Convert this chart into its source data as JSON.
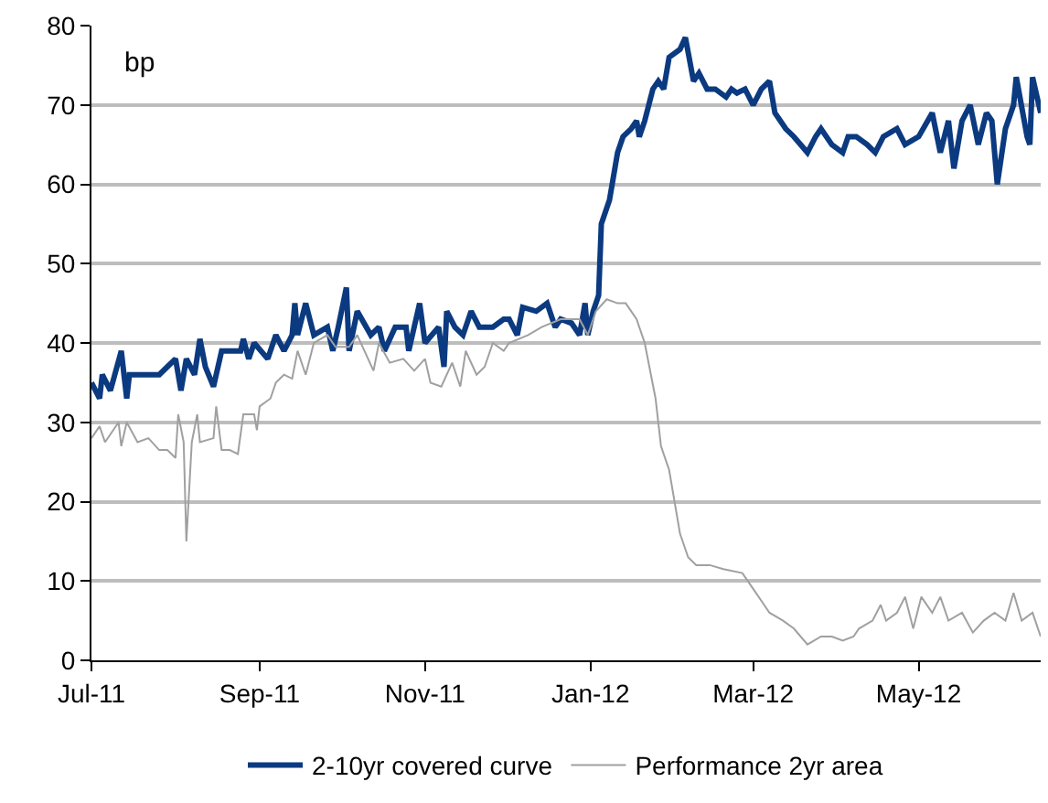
{
  "chart_data": {
    "type": "line",
    "annotations": [
      "bp"
    ],
    "series": [
      {
        "name": "2-10yr covered curve",
        "color": "#0b3a80",
        "x": [
          "2011-07-01",
          "2011-07-04",
          "2011-07-05",
          "2011-07-08",
          "2011-07-12",
          "2011-07-14",
          "2011-07-15",
          "2011-07-21",
          "2011-07-26",
          "2011-07-29",
          "2011-08-01",
          "2011-08-03",
          "2011-08-05",
          "2011-08-08",
          "2011-08-10",
          "2011-08-12",
          "2011-08-15",
          "2011-08-18",
          "2011-08-25",
          "2011-08-26",
          "2011-08-28",
          "2011-08-30",
          "2011-09-04",
          "2011-09-07",
          "2011-09-10",
          "2011-09-13",
          "2011-09-14",
          "2011-09-15",
          "2011-09-18",
          "2011-09-21",
          "2011-09-26",
          "2011-09-28",
          "2011-09-30",
          "2011-10-03",
          "2011-10-04",
          "2011-10-07",
          "2011-10-12",
          "2011-10-15",
          "2011-10-17",
          "2011-10-21",
          "2011-10-25",
          "2011-10-26",
          "2011-10-30",
          "2011-11-01",
          "2011-11-06",
          "2011-11-08",
          "2011-11-09",
          "2011-11-12",
          "2011-11-15",
          "2011-11-18",
          "2011-11-21",
          "2011-11-26",
          "2011-11-30",
          "2011-12-02",
          "2011-12-05",
          "2011-12-07",
          "2011-12-12",
          "2011-12-16",
          "2011-12-19",
          "2011-12-21",
          "2011-12-25",
          "2011-12-28",
          "2011-12-30",
          "2011-12-31",
          "2012-01-02",
          "2012-01-04",
          "2012-01-05",
          "2012-01-08",
          "2012-01-11",
          "2012-01-13",
          "2012-01-16",
          "2012-01-18",
          "2012-01-19",
          "2012-01-21",
          "2012-01-24",
          "2012-01-26",
          "2012-01-28",
          "2012-01-30",
          "2012-02-03",
          "2012-02-05",
          "2012-02-08",
          "2012-02-10",
          "2012-02-13",
          "2012-02-16",
          "2012-02-20",
          "2012-02-22",
          "2012-02-24",
          "2012-02-27",
          "2012-03-01",
          "2012-03-04",
          "2012-03-07",
          "2012-03-09",
          "2012-03-13",
          "2012-03-16",
          "2012-03-21",
          "2012-03-24",
          "2012-03-26",
          "2012-03-30",
          "2012-04-03",
          "2012-04-05",
          "2012-04-08",
          "2012-04-12",
          "2012-04-15",
          "2012-04-18",
          "2012-04-23",
          "2012-04-26",
          "2012-05-01",
          "2012-05-06",
          "2012-05-09",
          "2012-05-12",
          "2012-05-14",
          "2012-05-17",
          "2012-05-20",
          "2012-05-23",
          "2012-05-26",
          "2012-05-28",
          "2012-05-30",
          "2012-06-02",
          "2012-06-05",
          "2012-06-06",
          "2012-06-10",
          "2012-06-11",
          "2012-06-12",
          "2012-06-15"
        ],
        "values": [
          35,
          33,
          36,
          34,
          39,
          33,
          36,
          36,
          36,
          37,
          38,
          34,
          38,
          36,
          40.5,
          37,
          34.5,
          39,
          39,
          40.5,
          38,
          40,
          38,
          41,
          39,
          41,
          45,
          41,
          45,
          41,
          42,
          39,
          42,
          47,
          39,
          44,
          41,
          42,
          39,
          42,
          42,
          39,
          45,
          40,
          42,
          37,
          44,
          42,
          41,
          44,
          42,
          42,
          43,
          43,
          41,
          44.5,
          44,
          45,
          42,
          43,
          42.5,
          41,
          45,
          41,
          44,
          46,
          55,
          58,
          64,
          66,
          67,
          68,
          66,
          68,
          72,
          73,
          72,
          76,
          77,
          78.5,
          73,
          74,
          72,
          72,
          71,
          72,
          71.5,
          72,
          70,
          72,
          73,
          69,
          67,
          66,
          64,
          66,
          67,
          65,
          64,
          66,
          66,
          65,
          64,
          66,
          67,
          65,
          66,
          69,
          64,
          68,
          62,
          68,
          70,
          65,
          69,
          68,
          60,
          67,
          70,
          73.5,
          66,
          65,
          73.5,
          69
        ]
      },
      {
        "name": "Performance 2yr area",
        "color": "#a0a0a0",
        "x": [
          "2011-07-01",
          "2011-07-04",
          "2011-07-06",
          "2011-07-11",
          "2011-07-12",
          "2011-07-14",
          "2011-07-18",
          "2011-07-22",
          "2011-07-26",
          "2011-07-29",
          "2011-08-01",
          "2011-08-02",
          "2011-08-04",
          "2011-08-05",
          "2011-08-07",
          "2011-08-09",
          "2011-08-10",
          "2011-08-15",
          "2011-08-16",
          "2011-08-18",
          "2011-08-21",
          "2011-08-24",
          "2011-08-26",
          "2011-08-30",
          "2011-08-31",
          "2011-09-01",
          "2011-09-05",
          "2011-09-07",
          "2011-09-10",
          "2011-09-13",
          "2011-09-15",
          "2011-09-18",
          "2011-09-21",
          "2011-09-26",
          "2011-09-29",
          "2011-10-04",
          "2011-10-07",
          "2011-10-13",
          "2011-10-15",
          "2011-10-19",
          "2011-10-24",
          "2011-10-28",
          "2011-11-01",
          "2011-11-03",
          "2011-11-07",
          "2011-11-11",
          "2011-11-14",
          "2011-11-16",
          "2011-11-20",
          "2011-11-23",
          "2011-11-26",
          "2011-11-30",
          "2011-12-02",
          "2011-12-09",
          "2011-12-14",
          "2011-12-21",
          "2011-12-28",
          "2011-12-31",
          "2012-01-03",
          "2012-01-07",
          "2012-01-11",
          "2012-01-14",
          "2012-01-18",
          "2012-01-21",
          "2012-01-25",
          "2012-01-27",
          "2012-01-30",
          "2012-02-03",
          "2012-02-06",
          "2012-02-09",
          "2012-02-14",
          "2012-02-19",
          "2012-02-26",
          "2012-03-01",
          "2012-03-05",
          "2012-03-07",
          "2012-03-12",
          "2012-03-16",
          "2012-03-21",
          "2012-03-26",
          "2012-03-30",
          "2012-04-03",
          "2012-04-07",
          "2012-04-09",
          "2012-04-14",
          "2012-04-17",
          "2012-04-19",
          "2012-04-23",
          "2012-04-26",
          "2012-04-29",
          "2012-05-02",
          "2012-05-06",
          "2012-05-09",
          "2012-05-12",
          "2012-05-17",
          "2012-05-21",
          "2012-05-25",
          "2012-05-29",
          "2012-06-02",
          "2012-06-05",
          "2012-06-08",
          "2012-06-12",
          "2012-06-15"
        ],
        "values": [
          28,
          29.5,
          27.5,
          30,
          27,
          30,
          27.5,
          28,
          26.5,
          26.5,
          25.5,
          31,
          27.5,
          15,
          27.5,
          31,
          27.5,
          28,
          32,
          26.5,
          26.5,
          26,
          31,
          31,
          29,
          32,
          33,
          35,
          36,
          35.5,
          39,
          36,
          40,
          41,
          39.5,
          39.5,
          41,
          36.5,
          40,
          37.5,
          38,
          36.5,
          38,
          35,
          34.5,
          37.5,
          34.5,
          39,
          36,
          37,
          40,
          39,
          40,
          41,
          42,
          43,
          43,
          41,
          44,
          45.5,
          45,
          45,
          43,
          40,
          33,
          27,
          24,
          16,
          13,
          12,
          12,
          11.5,
          11,
          9,
          7,
          6,
          5,
          4,
          2,
          3,
          3,
          2.5,
          3,
          4,
          5,
          7,
          5,
          6,
          8,
          4,
          8,
          6,
          8,
          5,
          6,
          3.5,
          5,
          6,
          5,
          8.5,
          5,
          6,
          3
        ]
      }
    ],
    "xlim": [
      "2011-07-01",
      "2012-06-15"
    ],
    "xticks": [
      {
        "value": "2011-07-01",
        "label": "Jul-11"
      },
      {
        "value": "2011-09-01",
        "label": "Sep-11"
      },
      {
        "value": "2011-11-01",
        "label": "Nov-11"
      },
      {
        "value": "2012-01-01",
        "label": "Jan-12"
      },
      {
        "value": "2012-03-01",
        "label": "Mar-12"
      },
      {
        "value": "2012-05-01",
        "label": "May-12"
      }
    ],
    "ylim": [
      0,
      80
    ],
    "yticks": [
      0,
      10,
      20,
      30,
      40,
      50,
      60,
      70,
      80
    ],
    "grid": "y",
    "legend": "bottom",
    "marker": "none",
    "line_style": "solid"
  }
}
